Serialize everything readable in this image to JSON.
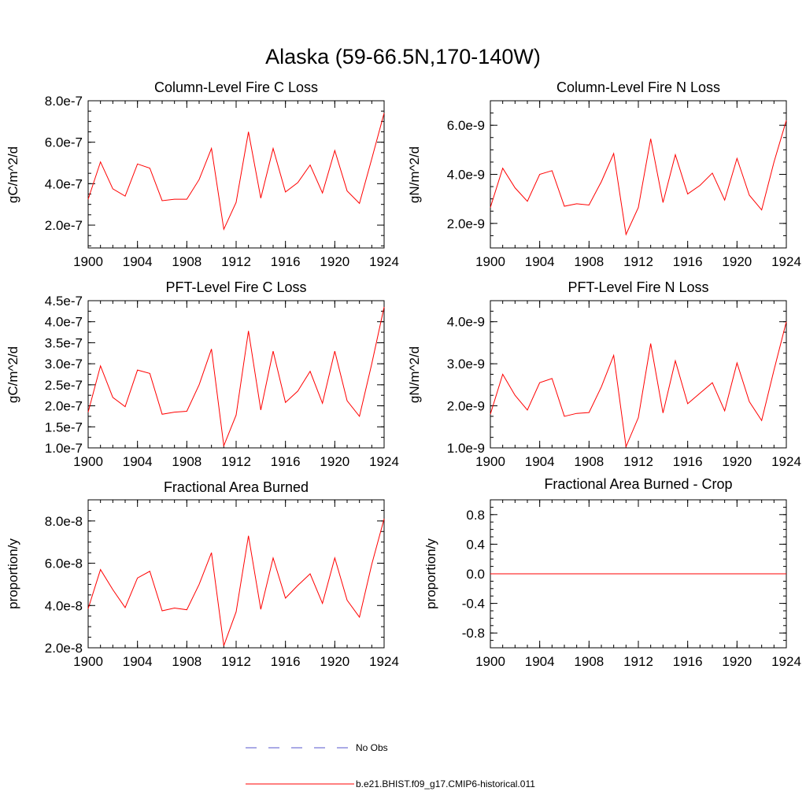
{
  "suptitle": "Alaska (59-66.5N,170-140W)",
  "colors": {
    "model": "#ff0000",
    "obs": "#5555cc",
    "axes": "#000000"
  },
  "legend": [
    {
      "label": "No Obs",
      "style": "dashed",
      "color": "#5555cc"
    },
    {
      "label": "b.e21.BHIST.f09_g17.CMIP6-historical.011",
      "style": "solid",
      "color": "#ff0000"
    }
  ],
  "chart_data": [
    {
      "type": "line",
      "title": "Column-Level Fire C Loss",
      "ylabel": "gC/m^2/d",
      "xlim": [
        1900,
        1924
      ],
      "ylim": [
        9e-08,
        8e-07
      ],
      "xticks": [
        1900,
        1904,
        1908,
        1912,
        1916,
        1920,
        1924
      ],
      "xtick_labels": [
        "1900",
        "1904",
        "1908",
        "1912",
        "1916",
        "1920",
        "1924"
      ],
      "yticks": [
        2e-07,
        4e-07,
        6e-07,
        8e-07
      ],
      "ytick_labels": [
        "2.0e-7",
        "4.0e-7",
        "6.0e-7",
        "8.0e-7"
      ],
      "yminor": 5e-08,
      "grid": false,
      "x": [
        1900,
        1901,
        1902,
        1903,
        1904,
        1905,
        1906,
        1907,
        1908,
        1909,
        1910,
        1911,
        1912,
        1913,
        1914,
        1915,
        1916,
        1917,
        1918,
        1919,
        1920,
        1921,
        1922,
        1923,
        1924
      ],
      "series": [
        {
          "name": "b.e21.BHIST.f09_g17.CMIP6-historical.011",
          "values": [
            3.25e-07,
            5.05e-07,
            3.75e-07,
            3.4e-07,
            4.95e-07,
            4.75e-07,
            3.18e-07,
            3.25e-07,
            3.25e-07,
            4.2e-07,
            5.7e-07,
            1.8e-07,
            3.1e-07,
            6.5e-07,
            3.3e-07,
            5.7e-07,
            3.6e-07,
            4.05e-07,
            4.9e-07,
            3.55e-07,
            5.6e-07,
            3.65e-07,
            3.05e-07,
            5.2e-07,
            7.4e-07
          ]
        }
      ]
    },
    {
      "type": "line",
      "title": "Column-Level Fire N Loss",
      "ylabel": "gN/m^2/d",
      "xlim": [
        1900,
        1924
      ],
      "ylim": [
        1e-09,
        7e-09
      ],
      "xticks": [
        1900,
        1904,
        1908,
        1912,
        1916,
        1920,
        1924
      ],
      "xtick_labels": [
        "1900",
        "1904",
        "1908",
        "1912",
        "1916",
        "1920",
        "1924"
      ],
      "yticks": [
        2e-09,
        4e-09,
        6e-09
      ],
      "ytick_labels": [
        "2.0e-9",
        "4.0e-9",
        "6.0e-9"
      ],
      "yminor": 5e-10,
      "grid": false,
      "x": [
        1900,
        1901,
        1902,
        1903,
        1904,
        1905,
        1906,
        1907,
        1908,
        1909,
        1910,
        1911,
        1912,
        1913,
        1914,
        1915,
        1916,
        1917,
        1918,
        1919,
        1920,
        1921,
        1922,
        1923,
        1924
      ],
      "series": [
        {
          "name": "b.e21.BHIST.f09_g17.CMIP6-historical.011",
          "values": [
            2.65e-09,
            4.25e-09,
            3.45e-09,
            2.9e-09,
            4e-09,
            4.15e-09,
            2.7e-09,
            2.8e-09,
            2.75e-09,
            3.7e-09,
            4.85e-09,
            1.55e-09,
            2.65e-09,
            5.45e-09,
            2.85e-09,
            4.8e-09,
            3.2e-09,
            3.55e-09,
            4.05e-09,
            2.95e-09,
            4.65e-09,
            3.15e-09,
            2.55e-09,
            4.5e-09,
            6.2e-09
          ]
        }
      ]
    },
    {
      "type": "line",
      "title": "PFT-Level Fire C Loss",
      "ylabel": "gC/m^2/d",
      "xlim": [
        1900,
        1924
      ],
      "ylim": [
        1e-07,
        4.5e-07
      ],
      "xticks": [
        1900,
        1904,
        1908,
        1912,
        1916,
        1920,
        1924
      ],
      "xtick_labels": [
        "1900",
        "1904",
        "1908",
        "1912",
        "1916",
        "1920",
        "1924"
      ],
      "yticks": [
        1e-07,
        1.5e-07,
        2e-07,
        2.5e-07,
        3e-07,
        3.5e-07,
        4e-07,
        4.5e-07
      ],
      "ytick_labels": [
        "1.0e-7",
        "1.5e-7",
        "2.0e-7",
        "2.5e-7",
        "3.0e-7",
        "3.5e-7",
        "4.0e-7",
        "4.5e-7"
      ],
      "yminor": 2.5e-08,
      "grid": false,
      "x": [
        1900,
        1901,
        1902,
        1903,
        1904,
        1905,
        1906,
        1907,
        1908,
        1909,
        1910,
        1911,
        1912,
        1913,
        1914,
        1915,
        1916,
        1917,
        1918,
        1919,
        1920,
        1921,
        1922,
        1923,
        1924
      ],
      "series": [
        {
          "name": "b.e21.BHIST.f09_g17.CMIP6-historical.011",
          "values": [
            1.85e-07,
            2.95e-07,
            2.2e-07,
            1.98e-07,
            2.85e-07,
            2.77e-07,
            1.8e-07,
            1.85e-07,
            1.87e-07,
            2.5e-07,
            3.35e-07,
            1.05e-07,
            1.78e-07,
            3.78e-07,
            1.9e-07,
            3.3e-07,
            2.08e-07,
            2.35e-07,
            2.82e-07,
            2.06e-07,
            3.3e-07,
            2.12e-07,
            1.75e-07,
            3e-07,
            4.35e-07
          ]
        }
      ]
    },
    {
      "type": "line",
      "title": "PFT-Level Fire N Loss",
      "ylabel": "gN/m^2/d",
      "xlim": [
        1900,
        1924
      ],
      "ylim": [
        1e-09,
        4.5e-09
      ],
      "xticks": [
        1900,
        1904,
        1908,
        1912,
        1916,
        1920,
        1924
      ],
      "xtick_labels": [
        "1900",
        "1904",
        "1908",
        "1912",
        "1916",
        "1920",
        "1924"
      ],
      "yticks": [
        1e-09,
        2e-09,
        3e-09,
        4e-09
      ],
      "ytick_labels": [
        "1.0e-9",
        "2.0e-9",
        "3.0e-9",
        "4.0e-9"
      ],
      "yminor": 2.5e-10,
      "grid": false,
      "x": [
        1900,
        1901,
        1902,
        1903,
        1904,
        1905,
        1906,
        1907,
        1908,
        1909,
        1910,
        1911,
        1912,
        1913,
        1914,
        1915,
        1916,
        1917,
        1918,
        1919,
        1920,
        1921,
        1922,
        1923,
        1924
      ],
      "series": [
        {
          "name": "b.e21.BHIST.f09_g17.CMIP6-historical.011",
          "values": [
            1.8e-09,
            2.75e-09,
            2.25e-09,
            1.9e-09,
            2.55e-09,
            2.65e-09,
            1.75e-09,
            1.82e-09,
            1.84e-09,
            2.45e-09,
            3.2e-09,
            1.03e-09,
            1.72e-09,
            3.48e-09,
            1.83e-09,
            3.07e-09,
            2.05e-09,
            2.3e-09,
            2.55e-09,
            1.88e-09,
            3.02e-09,
            2.1e-09,
            1.65e-09,
            2.85e-09,
            4e-09
          ]
        }
      ]
    },
    {
      "type": "line",
      "title": "Fractional Area Burned",
      "ylabel": "proportion/y",
      "xlim": [
        1900,
        1924
      ],
      "ylim": [
        2e-08,
        9e-08
      ],
      "xticks": [
        1900,
        1904,
        1908,
        1912,
        1916,
        1920,
        1924
      ],
      "xtick_labels": [
        "1900",
        "1904",
        "1908",
        "1912",
        "1916",
        "1920",
        "1924"
      ],
      "yticks": [
        2e-08,
        4e-08,
        6e-08,
        8e-08
      ],
      "ytick_labels": [
        "2.0e-8",
        "4.0e-8",
        "6.0e-8",
        "8.0e-8"
      ],
      "yminor": 5e-09,
      "grid": false,
      "x": [
        1900,
        1901,
        1902,
        1903,
        1904,
        1905,
        1906,
        1907,
        1908,
        1909,
        1910,
        1911,
        1912,
        1913,
        1914,
        1915,
        1916,
        1917,
        1918,
        1919,
        1920,
        1921,
        1922,
        1923,
        1924
      ],
      "series": [
        {
          "name": "b.e21.BHIST.f09_g17.CMIP6-historical.011",
          "values": [
            3.85e-08,
            5.7e-08,
            4.75e-08,
            3.9e-08,
            5.3e-08,
            5.62e-08,
            3.75e-08,
            3.88e-08,
            3.8e-08,
            5e-08,
            6.5e-08,
            2.1e-08,
            3.7e-08,
            7.3e-08,
            3.82e-08,
            6.25e-08,
            4.35e-08,
            4.95e-08,
            5.5e-08,
            4.1e-08,
            6.25e-08,
            4.25e-08,
            3.45e-08,
            5.95e-08,
            8.1e-08
          ]
        }
      ]
    },
    {
      "type": "line",
      "title": "Fractional Area Burned - Crop",
      "ylabel": "proportion/y",
      "xlim": [
        1900,
        1924
      ],
      "ylim": [
        -1.0,
        1.0
      ],
      "xticks": [
        1900,
        1904,
        1908,
        1912,
        1916,
        1920,
        1924
      ],
      "xtick_labels": [
        "1900",
        "1904",
        "1908",
        "1912",
        "1916",
        "1920",
        "1924"
      ],
      "yticks": [
        -0.8,
        -0.4,
        0.0,
        0.4,
        0.8
      ],
      "ytick_labels": [
        "-0.8",
        "-0.4",
        "0.0",
        "0.4",
        "0.8"
      ],
      "yminor": 0.1,
      "grid": false,
      "x": [
        1900,
        1901,
        1902,
        1903,
        1904,
        1905,
        1906,
        1907,
        1908,
        1909,
        1910,
        1911,
        1912,
        1913,
        1914,
        1915,
        1916,
        1917,
        1918,
        1919,
        1920,
        1921,
        1922,
        1923,
        1924
      ],
      "series": [
        {
          "name": "b.e21.BHIST.f09_g17.CMIP6-historical.011",
          "values": [
            0,
            0,
            0,
            0,
            0,
            0,
            0,
            0,
            0,
            0,
            0,
            0,
            0,
            0,
            0,
            0,
            0,
            0,
            0,
            0,
            0,
            0,
            0,
            0,
            0
          ]
        }
      ]
    }
  ]
}
